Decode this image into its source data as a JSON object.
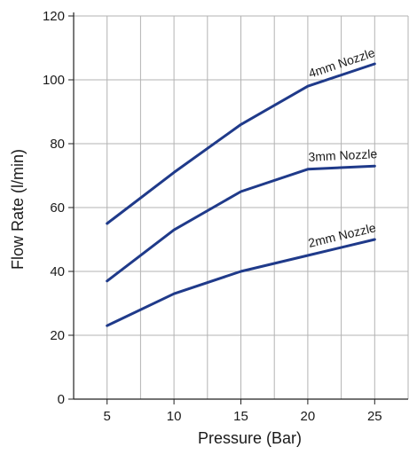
{
  "chart_data": {
    "type": "line",
    "xlabel": "Pressure (Bar)",
    "ylabel": "Flow Rate (l/min)",
    "x": [
      5,
      10,
      15,
      20,
      25
    ],
    "xlim": [
      2.5,
      27.5
    ],
    "ylim": [
      0,
      120
    ],
    "xticks": [
      "5",
      "10",
      "15",
      "20",
      "25"
    ],
    "yticks": [
      "0",
      "20",
      "40",
      "60",
      "80",
      "100",
      "120"
    ],
    "grid": true,
    "line_color": "#1f3a8a",
    "series": [
      {
        "name": "4mm Nozzle",
        "values": [
          55,
          71,
          86,
          98,
          105
        ]
      },
      {
        "name": "3mm Nozzle",
        "values": [
          37,
          53,
          65,
          72,
          73
        ]
      },
      {
        "name": "2mm Nozzle",
        "values": [
          23,
          33,
          40,
          45,
          50
        ]
      }
    ]
  }
}
